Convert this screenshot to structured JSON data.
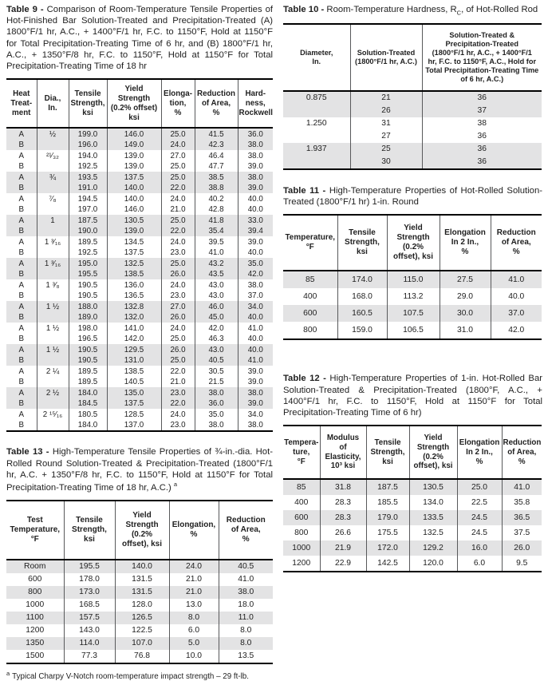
{
  "tables": {
    "table9": {
      "label": "Table 9 - ",
      "caption": "Comparison of Room-Temperature Tensile Properties of Hot-Finished Bar Solution-Treated and Precipitation-Treated (A) 1800°F/1 hr, A.C., + 1400°F/1 hr, F.C. to 1150°F, Hold at 1150°F for Total Precipitation-Treating Time of 6 hr, and (B) 1800°F/1 hr, A.C., + 1350°F/8 hr, F.C. to 1150°F, Hold at 1150°F for Total Precipitation-Treating Time of 18 hr",
      "columns": [
        "Heat\nTreat-\nment",
        "Dia.,\nIn.",
        "Tensile\nStrength,\nksi",
        "Yield\nStrength\n(0.2% offset)\nksi",
        "Elonga-\ntion,\n%",
        "Reduction\nof Area,\n%",
        "Hard-\nness,\nRockwell"
      ],
      "rows": [
        [
          "A",
          "½",
          "199.0",
          "146.0",
          "25.0",
          "41.5",
          "36.0"
        ],
        [
          "B",
          "",
          "196.0",
          "149.0",
          "24.0",
          "42.3",
          "38.0"
        ],
        [
          "A",
          "²¹⁄₃₂",
          "194.0",
          "139.0",
          "27.0",
          "46.4",
          "38.0"
        ],
        [
          "B",
          "",
          "192.5",
          "139.0",
          "25.0",
          "47.7",
          "39.0"
        ],
        [
          "A",
          "¾",
          "193.5",
          "137.5",
          "25.0",
          "38.5",
          "38.0"
        ],
        [
          "B",
          "",
          "191.0",
          "140.0",
          "22.0",
          "38.8",
          "39.0"
        ],
        [
          "A",
          "⁷⁄₈",
          "194.5",
          "140.0",
          "24.0",
          "40.2",
          "40.0"
        ],
        [
          "B",
          "",
          "197.0",
          "146.0",
          "21.0",
          "42.8",
          "40.0"
        ],
        [
          "A",
          "1",
          "187.5",
          "130.5",
          "25.0",
          "41.8",
          "33.0"
        ],
        [
          "B",
          "",
          "190.0",
          "139.0",
          "22.0",
          "35.4",
          "39.4"
        ],
        [
          "A",
          "1 ³⁄₁₆",
          "189.5",
          "134.5",
          "24.0",
          "39.5",
          "39.0"
        ],
        [
          "B",
          "",
          "192.5",
          "137.5",
          "23.0",
          "41.0",
          "40.0"
        ],
        [
          "A",
          "1 ³⁄₁₆",
          "195.0",
          "132.5",
          "25.0",
          "43.2",
          "35.0"
        ],
        [
          "B",
          "",
          "195.5",
          "138.5",
          "26.0",
          "43.5",
          "42.0"
        ],
        [
          "A",
          "1 ³⁄₈",
          "190.5",
          "136.0",
          "24.0",
          "43.0",
          "38.0"
        ],
        [
          "B",
          "",
          "190.5",
          "136.5",
          "23.0",
          "43.0",
          "37.0"
        ],
        [
          "A",
          "1 ½",
          "188.0",
          "132.8",
          "27.0",
          "46.0",
          "34.0"
        ],
        [
          "B",
          "",
          "189.0",
          "132.0",
          "26.0",
          "45.0",
          "40.0"
        ],
        [
          "A",
          "1 ½",
          "198.0",
          "141.0",
          "24.0",
          "42.0",
          "41.0"
        ],
        [
          "B",
          "",
          "196.5",
          "142.0",
          "25.0",
          "46.3",
          "40.0"
        ],
        [
          "A",
          "1 ½",
          "190.5",
          "129.5",
          "26.0",
          "43.0",
          "40.0"
        ],
        [
          "B",
          "",
          "190.5",
          "131.0",
          "25.0",
          "40.5",
          "41.0"
        ],
        [
          "A",
          "2 ¼",
          "189.5",
          "138.5",
          "22.0",
          "30.5",
          "39.0"
        ],
        [
          "B",
          "",
          "189.5",
          "140.5",
          "21.0",
          "21.5",
          "39.0"
        ],
        [
          "A",
          "2 ½",
          "184.0",
          "135.0",
          "23.0",
          "38.0",
          "38.0"
        ],
        [
          "B",
          "",
          "184.5",
          "137.5",
          "22.0",
          "36.0",
          "39.0"
        ],
        [
          "A",
          "2 ¹⁵⁄₁₆",
          "180.5",
          "128.5",
          "24.0",
          "35.0",
          "34.0"
        ],
        [
          "B",
          "",
          "184.0",
          "137.0",
          "23.0",
          "38.0",
          "38.0"
        ]
      ]
    },
    "table10": {
      "label": "Table 10 - ",
      "caption_pre": "Room-Temperature Hardness, R",
      "caption_sub": "C",
      "caption_post": ", of Hot-Rolled Rod",
      "columns": [
        "Diameter,\nIn.",
        "Solution-Treated\n(1800°F/1 hr, A.C.)",
        "Solution-Treated &\nPrecipitation-Treated\n(1800°F/1 hr, A.C., + 1400°F/1\nhr, F.C. to 1150°F, A.C., Hold for\nTotal Precipitation-Treating Time\nof 6 hr, A.C.)"
      ],
      "rows": [
        [
          "0.875",
          "21",
          "36"
        ],
        [
          "",
          "26",
          "37"
        ],
        [
          "1.250",
          "31",
          "38"
        ],
        [
          "",
          "27",
          "36"
        ],
        [
          "1.937",
          "25",
          "36"
        ],
        [
          "",
          "30",
          "36"
        ]
      ]
    },
    "table11": {
      "label": "Table 11 - ",
      "caption": "High-Temperature Properties of Hot-Rolled Solution-Treated (1800°F/1 hr) 1-in. Round",
      "columns": [
        "Temperature,\n°F",
        "Tensile\nStrength,\nksi",
        "Yield\nStrength\n(0.2%\noffset), ksi",
        "Elongation\nIn 2 In.,\n%",
        "Reduction\nof Area,\n%"
      ],
      "rows": [
        [
          "85",
          "174.0",
          "115.0",
          "27.5",
          "41.0"
        ],
        [
          "400",
          "168.0",
          "113.2",
          "29.0",
          "40.0"
        ],
        [
          "600",
          "160.5",
          "107.5",
          "30.0",
          "37.0"
        ],
        [
          "800",
          "159.0",
          "106.5",
          "31.0",
          "42.0"
        ]
      ]
    },
    "table12": {
      "label": "Table 12 - ",
      "caption": "High-Temperature Properties of 1-in. Hot-Rolled Bar Solution-Treated & Precipitation-Treated (1800°F, A.C., + 1400°F/1 hr, F.C. to 1150°F, Hold at 1150°F for Total Precipitation-Treating Time of 6 hr)",
      "columns": [
        "Tempera-\nture,\n°F",
        "Modulus\nof\nElasticity,\n10³ ksi",
        "Tensile\nStrength,\nksi",
        "Yield\nStrength\n(0.2%\noffset), ksi",
        "Elongation\nIn 2 In.,\n%",
        "Reduction\nof Area,\n%"
      ],
      "rows": [
        [
          "85",
          "31.8",
          "187.5",
          "130.5",
          "25.0",
          "41.0"
        ],
        [
          "400",
          "28.3",
          "185.5",
          "134.0",
          "22.5",
          "35.8"
        ],
        [
          "600",
          "28.3",
          "179.0",
          "133.5",
          "24.5",
          "36.5"
        ],
        [
          "800",
          "26.6",
          "175.5",
          "132.5",
          "24.5",
          "37.5"
        ],
        [
          "1000",
          "21.9",
          "172.0",
          "129.2",
          "16.0",
          "26.0"
        ],
        [
          "1200",
          "22.9",
          "142.5",
          "120.0",
          "6.0",
          "9.5"
        ]
      ]
    },
    "table13": {
      "label": "Table 13 - ",
      "caption": "High-Temperature Tensile Properties of ¾-in.-dia. Hot-Rolled Round Solution-Treated & Precipitation-Treated (1800°F/1 hr, A.C. + 1350°F/8 hr, F.C. to 1150°F, Hold at 1150°F for Total Precipitation-Treating Time of 18 hr, A.C.)",
      "caption_marker": "a",
      "columns": [
        "Test\nTemperature,\n°F",
        "Tensile\nStrength,\nksi",
        "Yield\nStrength\n(0.2%\noffset), ksi",
        "Elongation,\n%",
        "Reduction\nof Area,\n%"
      ],
      "rows": [
        [
          "Room",
          "195.5",
          "140.0",
          "24.0",
          "40.5"
        ],
        [
          "600",
          "178.0",
          "131.5",
          "21.0",
          "41.0"
        ],
        [
          "800",
          "173.0",
          "131.5",
          "21.0",
          "38.0"
        ],
        [
          "1000",
          "168.5",
          "128.0",
          "13.0",
          "18.0"
        ],
        [
          "1100",
          "157.5",
          "126.5",
          "8.0",
          "11.0"
        ],
        [
          "1200",
          "143.0",
          "122.5",
          "6.0",
          "8.0"
        ],
        [
          "1350",
          "114.0",
          "107.0",
          "5.0",
          "8.0"
        ],
        [
          "1500",
          "77.3",
          "76.8",
          "10.0",
          "13.5"
        ]
      ],
      "footnote_marker": "a",
      "footnote": "Typical Charpy V-Notch room-temperature impact strength – 29 ft-lb."
    }
  }
}
